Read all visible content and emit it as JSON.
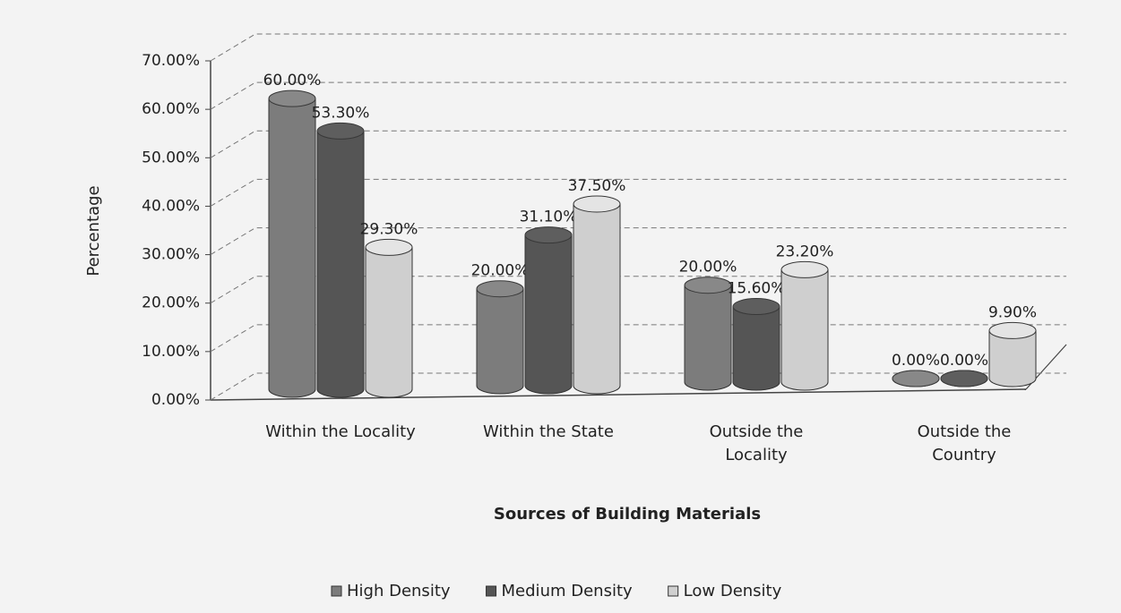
{
  "chart_data": {
    "type": "bar3d",
    "categories": [
      "Within the Locality",
      "Within the State",
      "Outside the Locality",
      "Outside the Country"
    ],
    "series": [
      {
        "name": "High Density",
        "color": "#7c7c7c",
        "values": [
          60,
          20,
          20,
          0
        ],
        "value_labels": [
          "60.00%",
          "20.00%",
          "20.00%",
          "0.00%"
        ]
      },
      {
        "name": "Medium Density",
        "color": "#555555",
        "values": [
          53.3,
          31.1,
          15.6,
          0
        ],
        "value_labels": [
          "53.30%",
          "31.10%",
          "15.60%",
          "0.00%"
        ]
      },
      {
        "name": "Low Density",
        "color": "#cfcfcf",
        "values": [
          29.3,
          37.5,
          23.2,
          9.9
        ],
        "value_labels": [
          "29.30%",
          "37.50%",
          "23.20%",
          "9.90%"
        ]
      }
    ],
    "ylim": [
      0,
      70
    ],
    "yticks": [
      {
        "value": 0,
        "label": "0.00%"
      },
      {
        "value": 10,
        "label": "10.00%"
      },
      {
        "value": 20,
        "label": "20.00%"
      },
      {
        "value": 30,
        "label": "30.00%"
      },
      {
        "value": 40,
        "label": "40.00%"
      },
      {
        "value": 50,
        "label": "50.00%"
      },
      {
        "value": 60,
        "label": "60.00%"
      },
      {
        "value": 70,
        "label": "70.00%"
      }
    ],
    "ylabel": "Percentage",
    "xlabel": "Sources of Building Materials",
    "grid": true,
    "legend": "bottom"
  }
}
